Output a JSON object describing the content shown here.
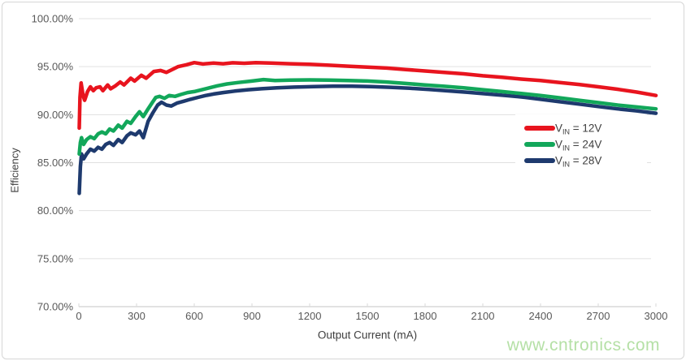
{
  "page": {
    "watermark": "www.cntronics.com",
    "watermark_color": "#b5e0a6",
    "background": "#ffffff",
    "border_color": "#d6d6d6"
  },
  "chart_data": {
    "type": "line",
    "title": "",
    "xlabel": "Output Current (mA)",
    "ylabel": "Efficiency",
    "xlim": [
      0,
      3000
    ],
    "ylim": [
      70,
      100
    ],
    "grid": "horizontal",
    "legend_position": "inside-right-middle",
    "x_ticks": {
      "values": [
        0,
        300,
        600,
        900,
        1200,
        1500,
        1800,
        2100,
        2400,
        2700,
        3000
      ],
      "labels": [
        "0",
        "300",
        "600",
        "900",
        "1200",
        "1500",
        "1800",
        "2100",
        "2400",
        "2700",
        "3000"
      ]
    },
    "y_ticks": {
      "values": [
        100,
        95,
        90,
        85,
        80,
        75,
        70
      ],
      "labels": [
        "100.00%",
        "95.00%",
        "90.00%",
        "85.00%",
        "80.00%",
        "75.00%",
        "70.00%"
      ]
    },
    "series": [
      {
        "id": "vin-12v",
        "legend": {
          "main": "V",
          "sub": "IN",
          "rest": " = 12V"
        },
        "color": "#e8141e",
        "points": [
          [
            2,
            88.6
          ],
          [
            6,
            91.8
          ],
          [
            12,
            93.3
          ],
          [
            22,
            92.0
          ],
          [
            30,
            91.5
          ],
          [
            45,
            92.4
          ],
          [
            60,
            92.9
          ],
          [
            75,
            92.5
          ],
          [
            90,
            92.8
          ],
          [
            110,
            92.9
          ],
          [
            125,
            92.5
          ],
          [
            150,
            93.1
          ],
          [
            165,
            92.7
          ],
          [
            190,
            93.0
          ],
          [
            215,
            93.4
          ],
          [
            235,
            93.1
          ],
          [
            270,
            93.8
          ],
          [
            290,
            93.5
          ],
          [
            325,
            94.1
          ],
          [
            350,
            93.8
          ],
          [
            390,
            94.5
          ],
          [
            425,
            94.6
          ],
          [
            455,
            94.4
          ],
          [
            515,
            95.0
          ],
          [
            560,
            95.2
          ],
          [
            600,
            95.42
          ],
          [
            645,
            95.28
          ],
          [
            700,
            95.38
          ],
          [
            750,
            95.3
          ],
          [
            800,
            95.4
          ],
          [
            860,
            95.35
          ],
          [
            920,
            95.42
          ],
          [
            1000,
            95.38
          ],
          [
            1100,
            95.3
          ],
          [
            1200,
            95.25
          ],
          [
            1300,
            95.15
          ],
          [
            1400,
            95.05
          ],
          [
            1500,
            94.95
          ],
          [
            1600,
            94.85
          ],
          [
            1700,
            94.7
          ],
          [
            1800,
            94.55
          ],
          [
            1900,
            94.4
          ],
          [
            2000,
            94.25
          ],
          [
            2100,
            94.05
          ],
          [
            2200,
            93.9
          ],
          [
            2300,
            93.7
          ],
          [
            2400,
            93.55
          ],
          [
            2500,
            93.35
          ],
          [
            2600,
            93.15
          ],
          [
            2700,
            92.9
          ],
          [
            2800,
            92.65
          ],
          [
            2900,
            92.35
          ],
          [
            3000,
            92.0
          ]
        ]
      },
      {
        "id": "vin-24v",
        "legend": {
          "main": "V",
          "sub": "IN",
          "rest": " = 24V"
        },
        "color": "#12a75a",
        "points": [
          [
            2,
            85.9
          ],
          [
            8,
            87.1
          ],
          [
            14,
            87.6
          ],
          [
            25,
            86.9
          ],
          [
            40,
            87.4
          ],
          [
            60,
            87.7
          ],
          [
            80,
            87.5
          ],
          [
            100,
            88.0
          ],
          [
            120,
            88.2
          ],
          [
            140,
            88.0
          ],
          [
            160,
            88.5
          ],
          [
            180,
            88.3
          ],
          [
            205,
            88.9
          ],
          [
            225,
            88.6
          ],
          [
            250,
            89.3
          ],
          [
            270,
            89.1
          ],
          [
            295,
            89.8
          ],
          [
            315,
            90.3
          ],
          [
            335,
            89.8
          ],
          [
            360,
            90.6
          ],
          [
            380,
            91.2
          ],
          [
            400,
            91.8
          ],
          [
            420,
            91.9
          ],
          [
            445,
            91.7
          ],
          [
            470,
            92.0
          ],
          [
            500,
            91.9
          ],
          [
            530,
            92.1
          ],
          [
            565,
            92.3
          ],
          [
            600,
            92.4
          ],
          [
            640,
            92.6
          ],
          [
            680,
            92.8
          ],
          [
            720,
            93.0
          ],
          [
            770,
            93.2
          ],
          [
            830,
            93.35
          ],
          [
            900,
            93.5
          ],
          [
            960,
            93.65
          ],
          [
            1020,
            93.55
          ],
          [
            1100,
            93.6
          ],
          [
            1200,
            93.62
          ],
          [
            1300,
            93.6
          ],
          [
            1400,
            93.55
          ],
          [
            1500,
            93.5
          ],
          [
            1600,
            93.4
          ],
          [
            1700,
            93.25
          ],
          [
            1800,
            93.1
          ],
          [
            1900,
            92.95
          ],
          [
            2000,
            92.8
          ],
          [
            2100,
            92.6
          ],
          [
            2200,
            92.4
          ],
          [
            2300,
            92.2
          ],
          [
            2400,
            92.0
          ],
          [
            2500,
            91.75
          ],
          [
            2600,
            91.5
          ],
          [
            2700,
            91.25
          ],
          [
            2800,
            91.0
          ],
          [
            2900,
            90.8
          ],
          [
            3000,
            90.6
          ]
        ]
      },
      {
        "id": "vin-28v",
        "legend": {
          "main": "V",
          "sub": "IN",
          "rest": " = 28V"
        },
        "color": "#1e3a6e",
        "points": [
          [
            2,
            81.8
          ],
          [
            8,
            84.6
          ],
          [
            14,
            85.9
          ],
          [
            25,
            85.4
          ],
          [
            40,
            85.9
          ],
          [
            60,
            86.4
          ],
          [
            80,
            86.2
          ],
          [
            100,
            86.6
          ],
          [
            120,
            86.4
          ],
          [
            140,
            86.9
          ],
          [
            160,
            87.1
          ],
          [
            180,
            86.8
          ],
          [
            205,
            87.4
          ],
          [
            225,
            87.1
          ],
          [
            250,
            87.8
          ],
          [
            270,
            88.1
          ],
          [
            295,
            87.9
          ],
          [
            315,
            88.3
          ],
          [
            335,
            87.6
          ],
          [
            360,
            89.3
          ],
          [
            385,
            90.2
          ],
          [
            410,
            91.0
          ],
          [
            430,
            91.3
          ],
          [
            455,
            91.0
          ],
          [
            480,
            90.9
          ],
          [
            510,
            91.2
          ],
          [
            545,
            91.4
          ],
          [
            580,
            91.6
          ],
          [
            620,
            91.8
          ],
          [
            660,
            92.0
          ],
          [
            700,
            92.15
          ],
          [
            750,
            92.3
          ],
          [
            810,
            92.45
          ],
          [
            880,
            92.6
          ],
          [
            950,
            92.7
          ],
          [
            1030,
            92.8
          ],
          [
            1120,
            92.87
          ],
          [
            1220,
            92.92
          ],
          [
            1320,
            92.97
          ],
          [
            1420,
            92.97
          ],
          [
            1520,
            92.92
          ],
          [
            1620,
            92.85
          ],
          [
            1720,
            92.75
          ],
          [
            1820,
            92.62
          ],
          [
            1920,
            92.48
          ],
          [
            2020,
            92.33
          ],
          [
            2120,
            92.17
          ],
          [
            2220,
            92.0
          ],
          [
            2320,
            91.8
          ],
          [
            2400,
            91.6
          ],
          [
            2500,
            91.35
          ],
          [
            2600,
            91.1
          ],
          [
            2700,
            90.85
          ],
          [
            2800,
            90.6
          ],
          [
            2900,
            90.4
          ],
          [
            3000,
            90.15
          ]
        ]
      }
    ]
  }
}
